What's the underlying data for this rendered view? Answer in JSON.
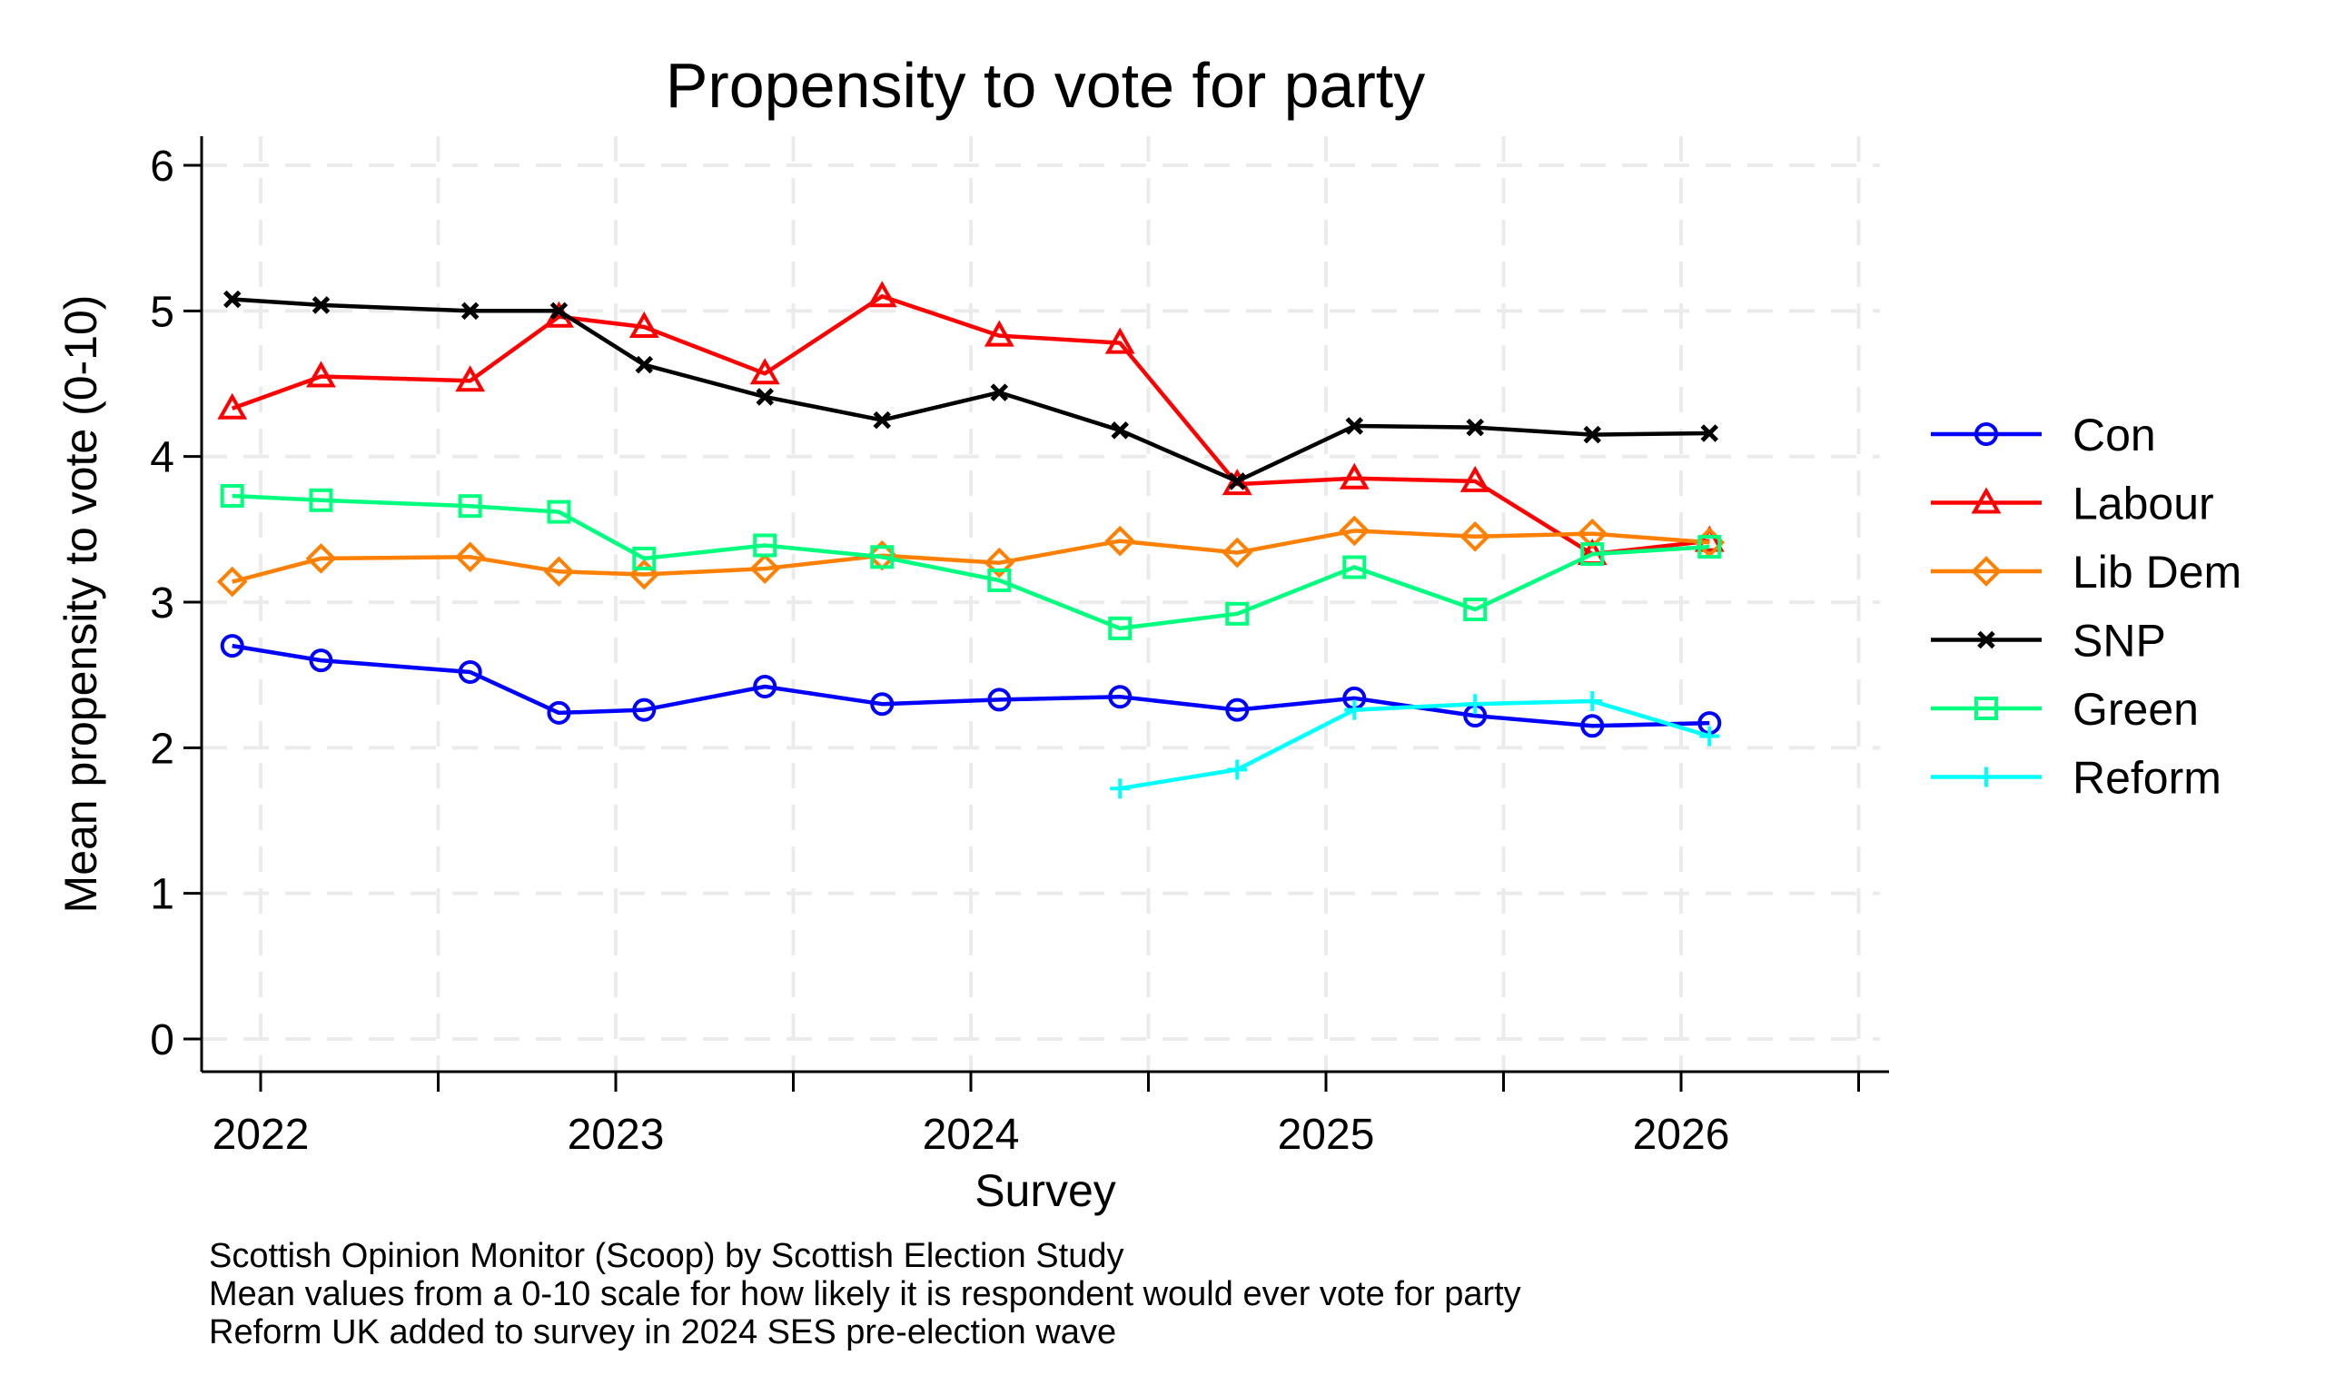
{
  "chart_data": {
    "type": "line",
    "title": "Propensity to vote for party",
    "xlabel": "Survey",
    "ylabel": "Mean propensity to vote (0-10)",
    "ylim": [
      0,
      6
    ],
    "xlim": [
      2021.75,
      2026.58
    ],
    "yticks": [
      "0",
      "1",
      "2",
      "3",
      "4",
      "5",
      "6"
    ],
    "xticks": [
      "2022",
      "2023",
      "2024",
      "2025",
      "2026"
    ],
    "grid": true,
    "legend_position": "right",
    "x": [
      2021.92,
      2022.17,
      2022.59,
      2022.84,
      2023.08,
      2023.42,
      2023.75,
      2024.08,
      2024.42,
      2024.75,
      2025.08,
      2025.42,
      2025.75,
      2026.08
    ],
    "series": [
      {
        "name": "Con",
        "color": "#0000ff",
        "marker": "circle",
        "values": [
          2.7,
          2.6,
          2.52,
          2.24,
          2.26,
          2.42,
          2.3,
          2.33,
          2.35,
          2.26,
          2.34,
          2.22,
          2.15,
          2.17
        ]
      },
      {
        "name": "Labour",
        "color": "#ff0000",
        "marker": "triangle",
        "values": [
          4.33,
          4.55,
          4.52,
          4.96,
          4.89,
          4.57,
          5.1,
          4.83,
          4.78,
          3.81,
          3.85,
          3.83,
          3.33,
          3.42
        ]
      },
      {
        "name": "Lib Dem",
        "color": "#ff7f00",
        "marker": "diamond",
        "values": [
          3.14,
          3.3,
          3.31,
          3.21,
          3.19,
          3.23,
          3.32,
          3.27,
          3.42,
          3.34,
          3.49,
          3.45,
          3.47,
          3.41
        ]
      },
      {
        "name": "SNP",
        "color": "#000000",
        "marker": "x",
        "values": [
          5.08,
          5.04,
          5.0,
          5.0,
          4.63,
          4.41,
          4.25,
          4.44,
          4.18,
          3.83,
          4.21,
          4.2,
          4.15,
          4.16
        ]
      },
      {
        "name": "Green",
        "color": "#00ff7f",
        "marker": "square",
        "values": [
          3.73,
          3.7,
          3.66,
          3.62,
          3.3,
          3.39,
          3.31,
          3.15,
          2.82,
          2.92,
          3.24,
          2.95,
          3.33,
          3.38
        ]
      },
      {
        "name": "Reform",
        "color": "#00ffff",
        "marker": "plus",
        "values": [
          null,
          null,
          null,
          null,
          null,
          null,
          null,
          null,
          1.72,
          1.85,
          2.26,
          2.3,
          2.32,
          2.08
        ]
      }
    ],
    "notes": [
      "Scottish Opinion Monitor (Scoop) by Scottish Election Study",
      "Mean values from a 0-10 scale for how likely it is respondent would ever vote for party",
      "Reform UK added to survey in 2024 SES pre-election wave"
    ]
  }
}
